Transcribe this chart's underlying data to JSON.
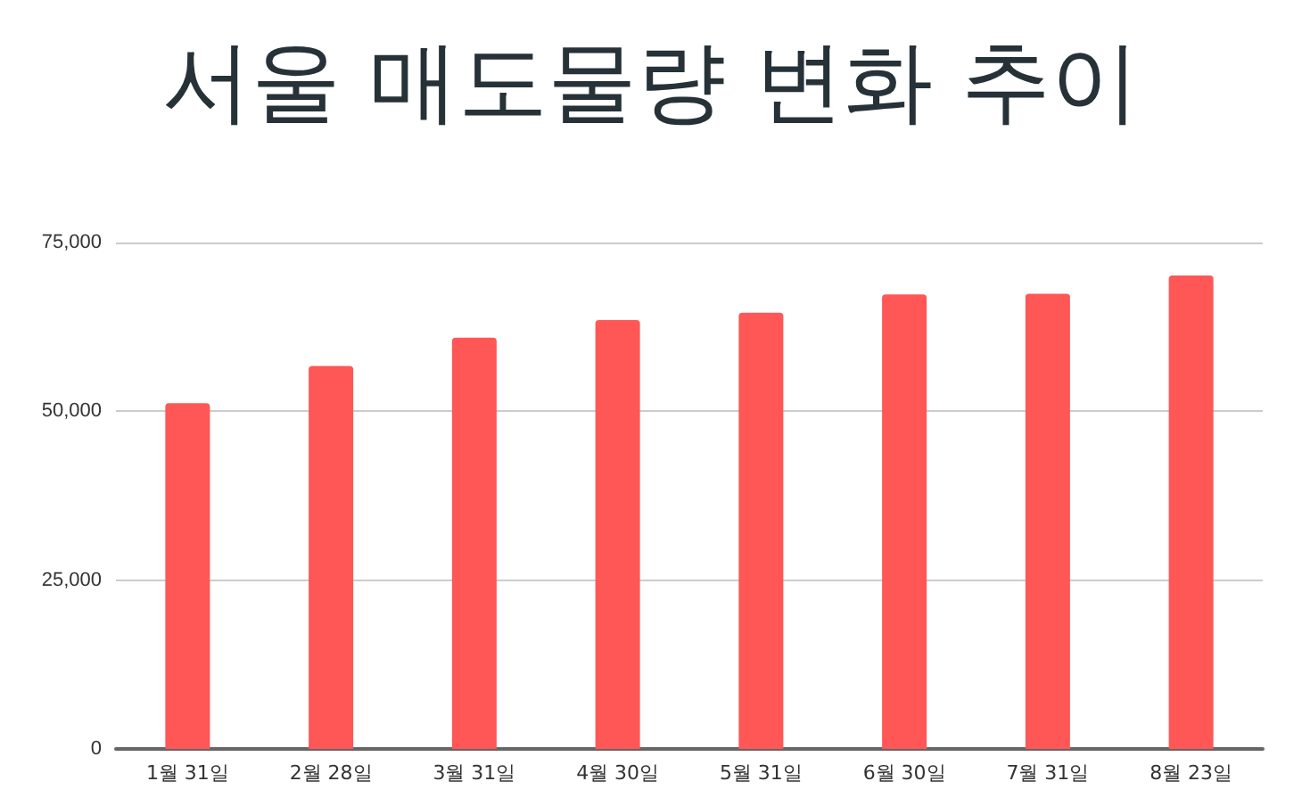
{
  "chart_data": {
    "type": "bar",
    "title": "서울 매도물량 변화 추이",
    "categories": [
      "1월 31일",
      "2월 28일",
      "3월 31일",
      "4월 30일",
      "5월 31일",
      "6월 30일",
      "7월 31일",
      "8월 23일"
    ],
    "values": [
      51200,
      56700,
      60900,
      63500,
      64600,
      67300,
      67400,
      70100
    ],
    "color": "#ff5656",
    "ylim": [
      0,
      75000
    ],
    "yticks": [
      0,
      {
        "value": 25000,
        "label": "25,000"
      },
      {
        "value": 50000,
        "label": "50,000"
      },
      {
        "value": 75000,
        "label": "75,000"
      }
    ],
    "grid": "y"
  }
}
